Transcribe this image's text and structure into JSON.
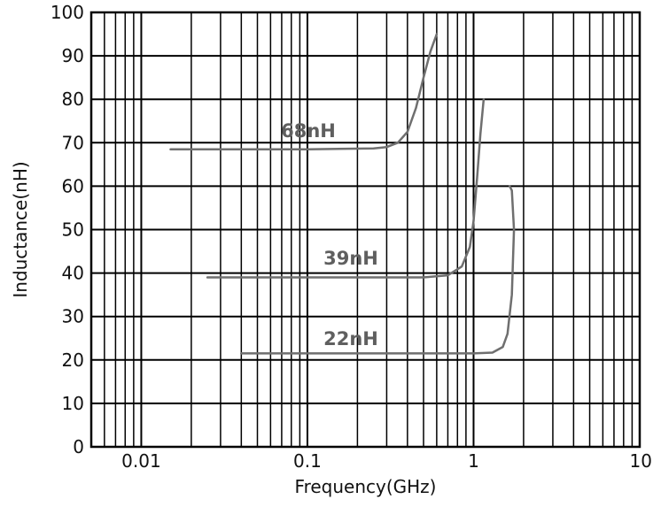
{
  "chart_data": {
    "type": "line",
    "x_scale": "log",
    "xlim": [
      0.005,
      10
    ],
    "ylim": [
      0,
      100
    ],
    "xlabel": "Frequency(GHz)",
    "ylabel": "Inductance(nH)",
    "x_tick_labels": [
      "0.01",
      "0.1",
      "1",
      "10"
    ],
    "x_tick_values": [
      0.01,
      0.1,
      1,
      10
    ],
    "y_tick_labels": [
      "0",
      "10",
      "20",
      "30",
      "40",
      "50",
      "60",
      "70",
      "80",
      "90",
      "100"
    ],
    "y_tick_values": [
      0,
      10,
      20,
      30,
      40,
      50,
      60,
      70,
      80,
      90,
      100
    ],
    "grid": true,
    "series": [
      {
        "name": "68nH",
        "color": "#6f6f6f",
        "points": [
          [
            0.015,
            68.5
          ],
          [
            0.1,
            68.5
          ],
          [
            0.25,
            68.7
          ],
          [
            0.3,
            69.0
          ],
          [
            0.35,
            70.0
          ],
          [
            0.4,
            72.5
          ],
          [
            0.45,
            78
          ],
          [
            0.5,
            85
          ],
          [
            0.55,
            91
          ],
          [
            0.6,
            95
          ]
        ]
      },
      {
        "name": "39nH",
        "color": "#6f6f6f",
        "points": [
          [
            0.025,
            39.0
          ],
          [
            0.2,
            39.0
          ],
          [
            0.5,
            39.0
          ],
          [
            0.7,
            39.5
          ],
          [
            0.85,
            41.5
          ],
          [
            0.95,
            46
          ],
          [
            1.0,
            52
          ],
          [
            1.05,
            62
          ],
          [
            1.1,
            72
          ],
          [
            1.15,
            80
          ]
        ]
      },
      {
        "name": "22nH",
        "color": "#6f6f6f",
        "points": [
          [
            0.04,
            21.5
          ],
          [
            0.3,
            21.5
          ],
          [
            1.0,
            21.5
          ],
          [
            1.3,
            21.7
          ],
          [
            1.5,
            23
          ],
          [
            1.6,
            26
          ],
          [
            1.7,
            35
          ],
          [
            1.75,
            50
          ],
          [
            1.7,
            59
          ],
          [
            1.65,
            60
          ]
        ]
      }
    ]
  }
}
